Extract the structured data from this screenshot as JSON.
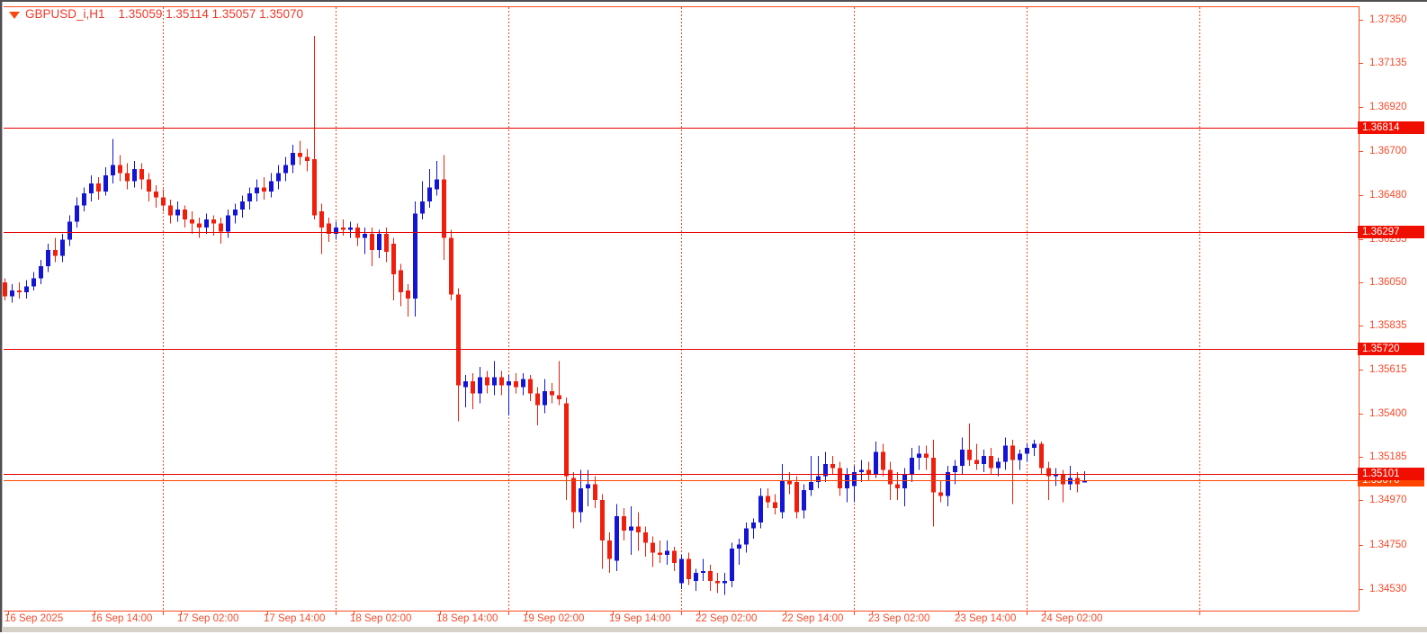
{
  "header": {
    "symbol_period": "GBPUSD_i,H1",
    "ohlc": "1.35059 1.35114 1.35057 1.35070"
  },
  "chart_data": {
    "type": "candlestick",
    "symbol": "GBPUSD_i",
    "timeframe": "H1",
    "current_candle": {
      "open": "1.35059",
      "high": "1.35114",
      "low": "1.35057",
      "close": "1.35070"
    },
    "y_axis": {
      "top_price": 1.3735,
      "bottom_price": 1.3453,
      "ticks": [
        "1.37350",
        "1.37135",
        "1.36920",
        "1.36700",
        "1.36480",
        "1.36265",
        "1.36050",
        "1.35835",
        "1.35615",
        "1.35400",
        "1.35185",
        "1.34970",
        "1.34750",
        "1.34530"
      ]
    },
    "x_axis": {
      "labels": [
        {
          "text": "16 Sep 2025",
          "i": 0
        },
        {
          "text": "16 Sep 14:00",
          "i": 12
        },
        {
          "text": "17 Sep 02:00",
          "i": 24
        },
        {
          "text": "17 Sep 14:00",
          "i": 36
        },
        {
          "text": "18 Sep 02:00",
          "i": 48
        },
        {
          "text": "18 Sep 14:00",
          "i": 60
        },
        {
          "text": "19 Sep 02:00",
          "i": 72
        },
        {
          "text": "19 Sep 14:00",
          "i": 84
        },
        {
          "text": "22 Sep 02:00",
          "i": 96
        },
        {
          "text": "22 Sep 14:00",
          "i": 108
        },
        {
          "text": "23 Sep 02:00",
          "i": 120
        },
        {
          "text": "23 Sep 14:00",
          "i": 132
        },
        {
          "text": "24 Sep 02:00",
          "i": 144
        }
      ],
      "day_boundary_i": [
        22,
        46,
        70,
        94,
        118,
        142,
        166
      ]
    },
    "hlines": [
      {
        "label": "1.36814",
        "price": 1.36814
      },
      {
        "label": "1.36297",
        "price": 1.36297
      },
      {
        "label": "1.35720",
        "price": 1.3572
      },
      {
        "label": "1.35101",
        "price": 1.35101
      }
    ],
    "current_price_line": {
      "label": "1.35070",
      "price": 1.3507
    },
    "colors": {
      "bull": "#1414d4",
      "bear": "#f01e0c",
      "grid": "#fc4b1d",
      "sr_line": "#e60000",
      "sr_label_bg": "#ef0e00",
      "price_label_bg": "#ff4500",
      "axis_text": "#f94a2b",
      "title_text": "#ee3a2a",
      "background": "#ffffff"
    },
    "candles": [
      [
        1.3605,
        1.3607,
        1.3596,
        1.3598
      ],
      [
        1.3598,
        1.3604,
        1.3595,
        1.3601
      ],
      [
        1.3601,
        1.3605,
        1.3597,
        1.36
      ],
      [
        1.36,
        1.3606,
        1.3597,
        1.3603
      ],
      [
        1.3603,
        1.361,
        1.3601,
        1.3607
      ],
      [
        1.3607,
        1.3616,
        1.3604,
        1.3613
      ],
      [
        1.3613,
        1.3624,
        1.361,
        1.3621
      ],
      [
        1.3621,
        1.3627,
        1.3615,
        1.3618
      ],
      [
        1.3618,
        1.3629,
        1.3615,
        1.3626
      ],
      [
        1.3626,
        1.3638,
        1.3623,
        1.3635
      ],
      [
        1.3635,
        1.3647,
        1.3632,
        1.3643
      ],
      [
        1.3643,
        1.3652,
        1.364,
        1.3649
      ],
      [
        1.3649,
        1.3658,
        1.3645,
        1.3654
      ],
      [
        1.3654,
        1.3657,
        1.3646,
        1.365
      ],
      [
        1.365,
        1.3662,
        1.3648,
        1.3658
      ],
      [
        1.3658,
        1.3676,
        1.3654,
        1.3663
      ],
      [
        1.3663,
        1.3668,
        1.3655,
        1.3659
      ],
      [
        1.3659,
        1.3664,
        1.3651,
        1.3655
      ],
      [
        1.3655,
        1.3665,
        1.3652,
        1.3661
      ],
      [
        1.3661,
        1.3664,
        1.3651,
        1.3656
      ],
      [
        1.3656,
        1.3659,
        1.3645,
        1.365
      ],
      [
        1.365,
        1.3653,
        1.3642,
        1.3647
      ],
      [
        1.3647,
        1.3651,
        1.364,
        1.3643
      ],
      [
        1.3643,
        1.3646,
        1.3634,
        1.3638
      ],
      [
        1.3638,
        1.3645,
        1.3635,
        1.3641
      ],
      [
        1.3641,
        1.3643,
        1.3632,
        1.3636
      ],
      [
        1.3636,
        1.364,
        1.3629,
        1.3634
      ],
      [
        1.3634,
        1.3637,
        1.3627,
        1.3632
      ],
      [
        1.3632,
        1.3639,
        1.3629,
        1.3636
      ],
      [
        1.3636,
        1.3638,
        1.3628,
        1.3634
      ],
      [
        1.3634,
        1.3637,
        1.3624,
        1.363
      ],
      [
        1.363,
        1.3641,
        1.3627,
        1.3638
      ],
      [
        1.3638,
        1.3644,
        1.3634,
        1.3641
      ],
      [
        1.3641,
        1.3648,
        1.3637,
        1.3645
      ],
      [
        1.3645,
        1.3652,
        1.3641,
        1.3649
      ],
      [
        1.3649,
        1.3656,
        1.3645,
        1.3652
      ],
      [
        1.3652,
        1.3657,
        1.3646,
        1.365
      ],
      [
        1.365,
        1.3659,
        1.3647,
        1.3655
      ],
      [
        1.3655,
        1.3663,
        1.3651,
        1.3659
      ],
      [
        1.3659,
        1.3667,
        1.3655,
        1.3663
      ],
      [
        1.3663,
        1.3673,
        1.3659,
        1.3669
      ],
      [
        1.3669,
        1.3675,
        1.3663,
        1.3667
      ],
      [
        1.3667,
        1.3671,
        1.366,
        1.3665
      ],
      [
        1.3666,
        1.3727,
        1.3636,
        1.3638
      ],
      [
        1.364,
        1.3644,
        1.3619,
        1.3632
      ],
      [
        1.3634,
        1.3637,
        1.3625,
        1.3629
      ],
      [
        1.3629,
        1.3635,
        1.3626,
        1.3632
      ],
      [
        1.3632,
        1.3636,
        1.3628,
        1.3631
      ],
      [
        1.3631,
        1.3635,
        1.3627,
        1.3632
      ],
      [
        1.3632,
        1.3634,
        1.3623,
        1.3627
      ],
      [
        1.3627,
        1.3632,
        1.3619,
        1.3629
      ],
      [
        1.3629,
        1.3632,
        1.3613,
        1.3621
      ],
      [
        1.3621,
        1.3631,
        1.3617,
        1.3629
      ],
      [
        1.3629,
        1.3632,
        1.3615,
        1.362
      ],
      [
        1.3624,
        1.3627,
        1.3596,
        1.3609
      ],
      [
        1.3611,
        1.3614,
        1.3593,
        1.36
      ],
      [
        1.3601,
        1.3604,
        1.3588,
        1.3597
      ],
      [
        1.3597,
        1.3645,
        1.3588,
        1.3639
      ],
      [
        1.3639,
        1.3655,
        1.3636,
        1.3645
      ],
      [
        1.3645,
        1.3661,
        1.3642,
        1.3652
      ],
      [
        1.3651,
        1.3665,
        1.3648,
        1.3656
      ],
      [
        1.3656,
        1.3668,
        1.3616,
        1.3627
      ],
      [
        1.3627,
        1.3631,
        1.3596,
        1.3599
      ],
      [
        1.3599,
        1.3602,
        1.3536,
        1.3554
      ],
      [
        1.3553,
        1.3559,
        1.3543,
        1.3556
      ],
      [
        1.3556,
        1.356,
        1.3542,
        1.355
      ],
      [
        1.355,
        1.3563,
        1.3545,
        1.3558
      ],
      [
        1.3558,
        1.3561,
        1.355,
        1.3554
      ],
      [
        1.3554,
        1.3566,
        1.3549,
        1.3558
      ],
      [
        1.3558,
        1.3561,
        1.3549,
        1.3554
      ],
      [
        1.3554,
        1.3559,
        1.3539,
        1.3556
      ],
      [
        1.3556,
        1.356,
        1.355,
        1.3553
      ],
      [
        1.3553,
        1.356,
        1.3549,
        1.3557
      ],
      [
        1.3557,
        1.3559,
        1.3546,
        1.355
      ],
      [
        1.355,
        1.3553,
        1.3534,
        1.3544
      ],
      [
        1.3544,
        1.3557,
        1.354,
        1.3551
      ],
      [
        1.3551,
        1.3555,
        1.3545,
        1.3549
      ],
      [
        1.3549,
        1.3566,
        1.3544,
        1.3547
      ],
      [
        1.3545,
        1.3548,
        1.3497,
        1.3509
      ],
      [
        1.3508,
        1.3511,
        1.3483,
        1.3491
      ],
      [
        1.3491,
        1.3512,
        1.3486,
        1.3503
      ],
      [
        1.3503,
        1.3512,
        1.3494,
        1.3505
      ],
      [
        1.3505,
        1.3509,
        1.3493,
        1.3497
      ],
      [
        1.3497,
        1.35,
        1.3463,
        1.3477
      ],
      [
        1.3477,
        1.3481,
        1.3461,
        1.3468
      ],
      [
        1.3467,
        1.3495,
        1.3462,
        1.3489
      ],
      [
        1.3489,
        1.3493,
        1.3477,
        1.3482
      ],
      [
        1.3482,
        1.3494,
        1.347,
        1.3484
      ],
      [
        1.3484,
        1.3491,
        1.3472,
        1.3481
      ],
      [
        1.3481,
        1.3484,
        1.3469,
        1.3476
      ],
      [
        1.3476,
        1.3479,
        1.3464,
        1.3471
      ],
      [
        1.3471,
        1.3477,
        1.3466,
        1.347
      ],
      [
        1.347,
        1.3477,
        1.3465,
        1.3472
      ],
      [
        1.3472,
        1.3474,
        1.3462,
        1.3466
      ],
      [
        1.3456,
        1.347,
        1.3453,
        1.3468
      ],
      [
        1.3468,
        1.3471,
        1.3455,
        1.3458
      ],
      [
        1.3457,
        1.3463,
        1.3452,
        1.3461
      ],
      [
        1.3461,
        1.3468,
        1.3457,
        1.3462
      ],
      [
        1.3462,
        1.3465,
        1.3452,
        1.3457
      ],
      [
        1.3457,
        1.3461,
        1.3451,
        1.3456
      ],
      [
        1.3456,
        1.3461,
        1.345,
        1.3457
      ],
      [
        1.3457,
        1.3476,
        1.3454,
        1.3473
      ],
      [
        1.3473,
        1.3478,
        1.3465,
        1.3475
      ],
      [
        1.3475,
        1.3486,
        1.3471,
        1.3483
      ],
      [
        1.3483,
        1.3488,
        1.3478,
        1.3486
      ],
      [
        1.3486,
        1.3503,
        1.3483,
        1.3499
      ],
      [
        1.3499,
        1.3503,
        1.3493,
        1.3496
      ],
      [
        1.3496,
        1.35,
        1.349,
        1.3493
      ],
      [
        1.3491,
        1.3515,
        1.3488,
        1.3507
      ],
      [
        1.3507,
        1.3511,
        1.35,
        1.3505
      ],
      [
        1.3506,
        1.3509,
        1.3488,
        1.3491
      ],
      [
        1.3492,
        1.3505,
        1.3488,
        1.3502
      ],
      [
        1.3502,
        1.3519,
        1.3499,
        1.3506
      ],
      [
        1.3506,
        1.3519,
        1.3503,
        1.3509
      ],
      [
        1.3509,
        1.3521,
        1.3506,
        1.3515
      ],
      [
        1.3515,
        1.3519,
        1.351,
        1.3513
      ],
      [
        1.3513,
        1.3516,
        1.3499,
        1.3503
      ],
      [
        1.3503,
        1.3513,
        1.3496,
        1.351
      ],
      [
        1.3504,
        1.3514,
        1.3496,
        1.3511
      ],
      [
        1.3511,
        1.3517,
        1.3506,
        1.3512
      ],
      [
        1.3512,
        1.3516,
        1.3507,
        1.351
      ],
      [
        1.351,
        1.3526,
        1.3508,
        1.3521
      ],
      [
        1.3521,
        1.3525,
        1.3509,
        1.3512
      ],
      [
        1.3512,
        1.3516,
        1.3497,
        1.3505
      ],
      [
        1.3505,
        1.3511,
        1.3497,
        1.3503
      ],
      [
        1.3503,
        1.3513,
        1.3494,
        1.351
      ],
      [
        1.351,
        1.3523,
        1.3506,
        1.3518
      ],
      [
        1.3518,
        1.3524,
        1.3512,
        1.352
      ],
      [
        1.352,
        1.3524,
        1.3512,
        1.3518
      ],
      [
        1.3518,
        1.3527,
        1.3484,
        1.3501
      ],
      [
        1.3501,
        1.3507,
        1.3496,
        1.3499
      ],
      [
        1.3499,
        1.3514,
        1.3494,
        1.3511
      ],
      [
        1.3511,
        1.3517,
        1.3505,
        1.3514
      ],
      [
        1.3514,
        1.3528,
        1.351,
        1.3522
      ],
      [
        1.3522,
        1.3535,
        1.3514,
        1.3517
      ],
      [
        1.3517,
        1.3525,
        1.3512,
        1.3515
      ],
      [
        1.3515,
        1.3522,
        1.3511,
        1.3519
      ],
      [
        1.3519,
        1.3523,
        1.351,
        1.3513
      ],
      [
        1.3513,
        1.3518,
        1.3509,
        1.3516
      ],
      [
        1.3516,
        1.3528,
        1.3512,
        1.3524
      ],
      [
        1.3524,
        1.3527,
        1.3495,
        1.3517
      ],
      [
        1.3517,
        1.3522,
        1.3512,
        1.352
      ],
      [
        1.352,
        1.3525,
        1.3516,
        1.3523
      ],
      [
        1.3523,
        1.3527,
        1.3519,
        1.3525
      ],
      [
        1.3525,
        1.3526,
        1.351,
        1.3513
      ],
      [
        1.3513,
        1.3516,
        1.3497,
        1.3509
      ],
      [
        1.3509,
        1.3513,
        1.3504,
        1.351
      ],
      [
        1.351,
        1.3512,
        1.3496,
        1.3505
      ],
      [
        1.3505,
        1.3514,
        1.3502,
        1.3508
      ],
      [
        1.3508,
        1.3511,
        1.3501,
        1.3505
      ],
      [
        1.35059,
        1.35114,
        1.35057,
        1.3507
      ]
    ]
  }
}
